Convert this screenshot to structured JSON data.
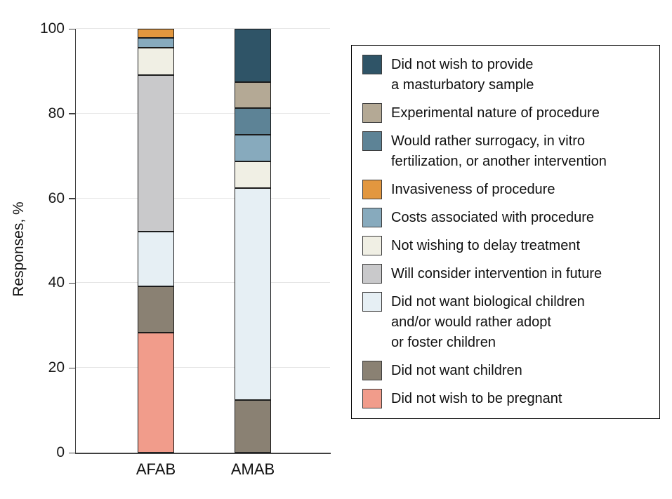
{
  "figure": {
    "background": "#ffffff",
    "y_axis": {
      "title": "Responses, %",
      "tick_values": [
        0,
        20,
        40,
        60,
        80,
        100
      ],
      "tick_labels": [
        "0",
        "20",
        "40",
        "60",
        "80",
        "100"
      ]
    },
    "x_axis": {
      "categories": [
        "AFAB",
        "AMAB"
      ]
    },
    "colors": {
      "axis": "#3f3f3f",
      "gridline": "#e5e5e5",
      "segment_border": "#1b1b1b",
      "legend_border": "#000000",
      "text": "#111111"
    }
  },
  "chart_data": {
    "type": "bar",
    "variant": "stacked-vertical",
    "title": "",
    "xlabel": "",
    "ylabel": "Responses, %",
    "ylim": [
      0,
      100
    ],
    "grid": true,
    "legend_position": "right",
    "categories": [
      "AFAB",
      "AMAB"
    ],
    "series": [
      {
        "name": "Did not wish to provide a masturbatory sample",
        "legend_label": "Did not wish to provide\na masturbatory sample",
        "color": "#2F5467",
        "values": [
          0,
          12.5
        ]
      },
      {
        "name": "Experimental nature of procedure",
        "legend_label": "Experimental nature of procedure",
        "color": "#B4A995",
        "values": [
          0,
          6.25
        ]
      },
      {
        "name": "Would rather surrogacy, in vitro fertilization, or another intervention",
        "legend_label": "Would rather surrogacy, in vitro\nfertilization, or another intervention",
        "color": "#5D8396",
        "values": [
          0,
          6.25
        ]
      },
      {
        "name": "Invasiveness of procedure",
        "legend_label": "Invasiveness of procedure",
        "color": "#E2973F",
        "values": [
          2.2,
          0
        ]
      },
      {
        "name": "Costs associated with procedure",
        "legend_label": "Costs associated with procedure",
        "color": "#87AABD",
        "values": [
          2.2,
          6.25
        ]
      },
      {
        "name": "Not wishing to delay treatment",
        "legend_label": "Not wishing to delay treatment",
        "color": "#F0EFE4",
        "values": [
          6.5,
          6.25
        ]
      },
      {
        "name": "Will consider intervention in future",
        "legend_label": "Will consider intervention in future",
        "color": "#C9C9CB",
        "values": [
          36.9,
          0
        ]
      },
      {
        "name": "Did not want biological children and/or would rather adopt or foster children",
        "legend_label": "Did not want biological children\nand/or would rather adopt\nor foster children",
        "color": "#E6EFF4",
        "values": [
          13.0,
          50
        ]
      },
      {
        "name": "Did not want children",
        "legend_label": "Did not want children",
        "color": "#8A8173",
        "values": [
          10.9,
          12.5
        ]
      },
      {
        "name": "Did not wish to be pregnant",
        "legend_label": "Did not wish to be pregnant",
        "color": "#F19C8B",
        "values": [
          28.3,
          0
        ]
      }
    ]
  }
}
